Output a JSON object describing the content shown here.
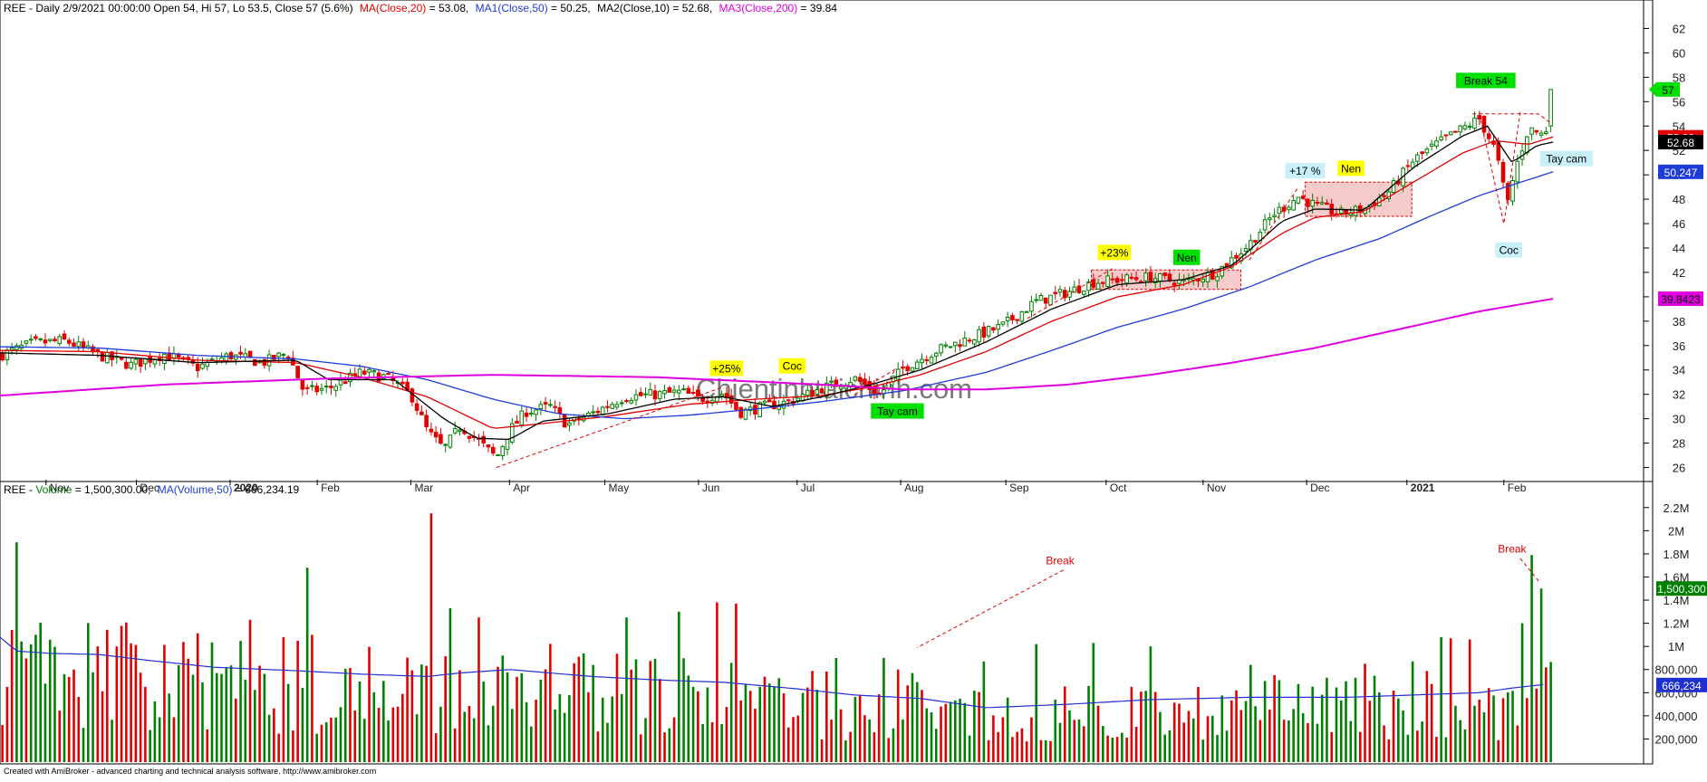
{
  "header": {
    "price_prefix": "REE - Daily 2/9/2021 00:00:00 Open 54, Hi 57, Lo 53.5, Close 57 (5.6%)",
    "ma20_label": "MA(Close,20)",
    "ma20_value": " = 53.08,",
    "ma50_label": "MA1(Close,50)",
    "ma50_value": " = 50.25,",
    "ma10_label": "MA2(Close,10)",
    "ma10_value": " = 52.68,",
    "ma200_label": "MA3(Close,200)",
    "ma200_value": " = 39.84",
    "volume_prefix": "REE - ",
    "volume_label": "Volume",
    "volume_value": " = 1,500,300.00,",
    "volume_ma_label": "MA(Volume,50)",
    "volume_ma_value": " = 666,234.19"
  },
  "watermark": "Chientinhtaichinh.com",
  "footer": "Created with AmiBroker - advanced charting and technical analysis software. http://www.amibroker.com",
  "colors": {
    "up": "#008000",
    "down": "#e00000",
    "ma20": "#e00000",
    "ma10": "#000000",
    "ma50": "#1e3cd8",
    "ma200": "#e000e0",
    "volume_ma": "#2030d0",
    "annotation_yellow": "#ffff00",
    "annotation_green": "#00e000",
    "annotation_cyan": "#c8f0f8",
    "zone_fill": "#f0a0a0",
    "zone_stroke": "#e00000"
  },
  "chart_data": [
    {
      "type": "candlestick",
      "ylim": [
        25,
        63
      ],
      "y_ticks": [
        26,
        28,
        30,
        32,
        34,
        36,
        38,
        40,
        42,
        44,
        46,
        48,
        50,
        52,
        54,
        56,
        58,
        60,
        62
      ],
      "x_month_labels": [
        "Nov",
        "Dec",
        "2020",
        "Feb",
        "Mar",
        "Apr",
        "May",
        "Jun",
        "Jul",
        "Aug",
        "Sep",
        "Oct",
        "Nov",
        "Dec",
        "2021",
        "Feb"
      ],
      "x_month_positions": [
        0.028,
        0.083,
        0.14,
        0.193,
        0.25,
        0.31,
        0.368,
        0.425,
        0.485,
        0.548,
        0.612,
        0.673,
        0.732,
        0.795,
        0.856,
        0.915
      ],
      "price_anchors": [
        [
          0.0,
          35.2
        ],
        [
          0.02,
          36.2
        ],
        [
          0.04,
          36.4
        ],
        [
          0.06,
          35.2
        ],
        [
          0.08,
          34.4
        ],
        [
          0.1,
          35.3
        ],
        [
          0.12,
          34.2
        ],
        [
          0.14,
          35.2
        ],
        [
          0.16,
          34.6
        ],
        [
          0.175,
          35.4
        ],
        [
          0.185,
          32.2
        ],
        [
          0.2,
          32.5
        ],
        [
          0.22,
          33.8
        ],
        [
          0.235,
          33.4
        ],
        [
          0.25,
          32.0
        ],
        [
          0.26,
          29.0
        ],
        [
          0.27,
          27.5
        ],
        [
          0.28,
          29.4
        ],
        [
          0.29,
          28.3
        ],
        [
          0.302,
          26.8
        ],
        [
          0.31,
          29.0
        ],
        [
          0.32,
          30.6
        ],
        [
          0.335,
          31.0
        ],
        [
          0.345,
          29.5
        ],
        [
          0.36,
          30.4
        ],
        [
          0.38,
          31.8
        ],
        [
          0.4,
          32.0
        ],
        [
          0.415,
          32.2
        ],
        [
          0.425,
          31.6
        ],
        [
          0.44,
          32.1
        ],
        [
          0.45,
          30.5
        ],
        [
          0.465,
          31.0
        ],
        [
          0.48,
          31.4
        ],
        [
          0.5,
          32.5
        ],
        [
          0.52,
          33.3
        ],
        [
          0.535,
          32.0
        ],
        [
          0.55,
          34.2
        ],
        [
          0.57,
          35.6
        ],
        [
          0.59,
          36.6
        ],
        [
          0.61,
          37.6
        ],
        [
          0.63,
          39.6
        ],
        [
          0.65,
          40.4
        ],
        [
          0.665,
          41.2
        ],
        [
          0.68,
          41.4
        ],
        [
          0.7,
          41.6
        ],
        [
          0.72,
          41.2
        ],
        [
          0.74,
          42.0
        ],
        [
          0.76,
          44.3
        ],
        [
          0.775,
          46.8
        ],
        [
          0.79,
          48.2
        ],
        [
          0.8,
          47.5
        ],
        [
          0.815,
          46.8
        ],
        [
          0.83,
          47.2
        ],
        [
          0.845,
          48.6
        ],
        [
          0.86,
          51.2
        ],
        [
          0.875,
          52.6
        ],
        [
          0.89,
          53.8
        ],
        [
          0.9,
          54.6
        ],
        [
          0.91,
          52.0
        ],
        [
          0.917,
          47.5
        ],
        [
          0.922,
          50.5
        ],
        [
          0.93,
          53.8
        ],
        [
          0.94,
          53.2
        ],
        [
          0.945,
          57.0
        ]
      ],
      "ohlc_last": {
        "date": "2/9/2021",
        "open": 54,
        "high": 57,
        "low": 53.5,
        "close": 57,
        "change_pct": 5.6
      },
      "series": [
        {
          "name": "MA(Close,20)",
          "last": 53.08,
          "anchors": [
            [
              0.0,
              35.6
            ],
            [
              0.06,
              35.5
            ],
            [
              0.12,
              34.8
            ],
            [
              0.18,
              34.6
            ],
            [
              0.22,
              33.4
            ],
            [
              0.26,
              31.8
            ],
            [
              0.3,
              29.2
            ],
            [
              0.33,
              29.6
            ],
            [
              0.37,
              30.2
            ],
            [
              0.42,
              31.2
            ],
            [
              0.46,
              31.6
            ],
            [
              0.5,
              31.9
            ],
            [
              0.53,
              32.6
            ],
            [
              0.56,
              33.6
            ],
            [
              0.6,
              35.5
            ],
            [
              0.64,
              38.0
            ],
            [
              0.68,
              40.0
            ],
            [
              0.72,
              41.0
            ],
            [
              0.75,
              42.5
            ],
            [
              0.78,
              45.2
            ],
            [
              0.8,
              46.5
            ],
            [
              0.83,
              47.0
            ],
            [
              0.86,
              49.4
            ],
            [
              0.89,
              51.8
            ],
            [
              0.91,
              52.8
            ],
            [
              0.93,
              52.5
            ],
            [
              0.945,
              53.1
            ]
          ]
        },
        {
          "name": "MA1(Close,50)",
          "last": 50.25,
          "anchors": [
            [
              0.0,
              35.9
            ],
            [
              0.06,
              35.8
            ],
            [
              0.12,
              35.2
            ],
            [
              0.18,
              34.9
            ],
            [
              0.22,
              34.3
            ],
            [
              0.26,
              33.2
            ],
            [
              0.3,
              31.6
            ],
            [
              0.34,
              30.4
            ],
            [
              0.38,
              30.0
            ],
            [
              0.42,
              30.3
            ],
            [
              0.46,
              30.8
            ],
            [
              0.5,
              31.4
            ],
            [
              0.55,
              32.3
            ],
            [
              0.6,
              33.8
            ],
            [
              0.64,
              35.6
            ],
            [
              0.68,
              37.5
            ],
            [
              0.72,
              39.0
            ],
            [
              0.76,
              40.8
            ],
            [
              0.8,
              43.0
            ],
            [
              0.84,
              44.8
            ],
            [
              0.87,
              46.6
            ],
            [
              0.9,
              48.3
            ],
            [
              0.93,
              49.6
            ],
            [
              0.945,
              50.25
            ]
          ]
        },
        {
          "name": "MA2(Close,10)",
          "last": 52.68,
          "anchors": [
            [
              0.0,
              35.4
            ],
            [
              0.06,
              35.2
            ],
            [
              0.12,
              34.6
            ],
            [
              0.18,
              34.8
            ],
            [
              0.2,
              33.2
            ],
            [
              0.24,
              33.2
            ],
            [
              0.27,
              30.0
            ],
            [
              0.29,
              28.4
            ],
            [
              0.31,
              28.3
            ],
            [
              0.33,
              29.8
            ],
            [
              0.37,
              30.4
            ],
            [
              0.41,
              31.6
            ],
            [
              0.44,
              31.8
            ],
            [
              0.47,
              31.0
            ],
            [
              0.5,
              31.8
            ],
            [
              0.53,
              32.8
            ],
            [
              0.56,
              34.0
            ],
            [
              0.6,
              36.3
            ],
            [
              0.64,
              39.0
            ],
            [
              0.68,
              41.0
            ],
            [
              0.72,
              41.4
            ],
            [
              0.75,
              42.6
            ],
            [
              0.78,
              46.2
            ],
            [
              0.8,
              47.2
            ],
            [
              0.83,
              47.1
            ],
            [
              0.86,
              50.6
            ],
            [
              0.89,
              53.2
            ],
            [
              0.905,
              54.0
            ],
            [
              0.92,
              51.0
            ],
            [
              0.935,
              52.4
            ],
            [
              0.945,
              52.68
            ]
          ]
        },
        {
          "name": "MA3(Close,200)",
          "last": 39.84,
          "anchors": [
            [
              0.0,
              31.9
            ],
            [
              0.1,
              32.8
            ],
            [
              0.2,
              33.3
            ],
            [
              0.3,
              33.6
            ],
            [
              0.4,
              33.4
            ],
            [
              0.5,
              32.8
            ],
            [
              0.55,
              32.4
            ],
            [
              0.6,
              32.4
            ],
            [
              0.65,
              32.8
            ],
            [
              0.7,
              33.6
            ],
            [
              0.75,
              34.6
            ],
            [
              0.8,
              35.8
            ],
            [
              0.85,
              37.3
            ],
            [
              0.9,
              38.8
            ],
            [
              0.945,
              39.84
            ]
          ]
        }
      ],
      "right_axis_badges": [
        {
          "label": "57",
          "value": 57,
          "color": "#00e000"
        },
        {
          "label": "53.08",
          "value": 53.08,
          "color": "#e00000"
        },
        {
          "label": "52.68",
          "value": 52.68,
          "color": "#000000"
        },
        {
          "label": "50.247",
          "value": 50.247,
          "color": "#1e3cd8"
        },
        {
          "label": "39.8423",
          "value": 39.8423,
          "color": "#e000e0"
        }
      ],
      "annotations": [
        {
          "text": "+25%",
          "x": 0.442,
          "y": 34.1,
          "bg": "#ffff00"
        },
        {
          "text": "Coc",
          "x": 0.482,
          "y": 34.3,
          "bg": "#ffff00"
        },
        {
          "text": "Tay cam",
          "x": 0.546,
          "y": 30.6,
          "bg": "#00e000"
        },
        {
          "text": "+23%",
          "x": 0.678,
          "y": 43.6,
          "bg": "#ffff00"
        },
        {
          "text": "Nen",
          "x": 0.722,
          "y": 43.2,
          "bg": "#00e000"
        },
        {
          "text": "+17 %",
          "x": 0.794,
          "y": 50.3,
          "bg": "#c8f0f8"
        },
        {
          "text": "Nen",
          "x": 0.822,
          "y": 50.5,
          "bg": "#ffff00"
        },
        {
          "text": "Break 54",
          "x": 0.904,
          "y": 57.7,
          "bg": "#00e000"
        },
        {
          "text": "Tay cam",
          "x": 0.953,
          "y": 51.3,
          "bg": "#c8f0f8"
        },
        {
          "text": "Coc",
          "x": 0.918,
          "y": 43.8,
          "bg": "#c8f0f8"
        }
      ],
      "zones": [
        {
          "x0": 0.664,
          "x1": 0.755,
          "y0": 40.6,
          "y1": 42.2
        },
        {
          "x0": 0.794,
          "x1": 0.859,
          "y0": 46.6,
          "y1": 49.4
        }
      ]
    },
    {
      "type": "bar",
      "ylim": [
        0,
        2300000
      ],
      "y_ticks": [
        200000,
        400000,
        600000,
        800000,
        1000000,
        1200000,
        1400000,
        1600000,
        1800000,
        2000000,
        2200000
      ],
      "y_tick_labels": [
        "200,000",
        "400,000",
        "600,000",
        "800,000",
        "1M",
        "1.2M",
        "1.4M",
        "1.6M",
        "1.8M",
        "2M",
        "2.2M"
      ],
      "last_volume": 1500300,
      "volume_ma_last": 666234.19,
      "spikes": [
        [
          0.011,
          1900000,
          "up"
        ],
        [
          0.023,
          1100000,
          "up"
        ],
        [
          0.045,
          800000,
          "down"
        ],
        [
          0.058,
          1000000,
          "down"
        ],
        [
          0.07,
          1000000,
          "down"
        ],
        [
          0.138,
          820000,
          "up"
        ],
        [
          0.153,
          1230000,
          "down"
        ],
        [
          0.172,
          1080000,
          "down"
        ],
        [
          0.187,
          1680000,
          "up"
        ],
        [
          0.19,
          1100000,
          "down"
        ],
        [
          0.262,
          2150000,
          "down"
        ],
        [
          0.275,
          1330000,
          "up"
        ],
        [
          0.29,
          1250000,
          "down"
        ],
        [
          0.38,
          1250000,
          "up"
        ],
        [
          0.412,
          1300000,
          "up"
        ],
        [
          0.437,
          1380000,
          "down"
        ],
        [
          0.447,
          1370000,
          "down"
        ],
        [
          0.51,
          900000,
          "up"
        ],
        [
          0.538,
          900000,
          "up"
        ],
        [
          0.547,
          800000,
          "down"
        ],
        [
          0.555,
          770000,
          "up"
        ],
        [
          0.6,
          870000,
          "up"
        ],
        [
          0.63,
          1020000,
          "up"
        ],
        [
          0.665,
          1030000,
          "up"
        ],
        [
          0.7,
          1000000,
          "up"
        ],
        [
          0.76,
          840000,
          "up"
        ],
        [
          0.83,
          850000,
          "down"
        ],
        [
          0.86,
          870000,
          "up"
        ],
        [
          0.878,
          1080000,
          "up"
        ],
        [
          0.884,
          1070000,
          "down"
        ],
        [
          0.895,
          1060000,
          "down"
        ],
        [
          0.927,
          1200000,
          "up"
        ],
        [
          0.933,
          1790000,
          "up"
        ],
        [
          0.939,
          1500300,
          "up"
        ]
      ],
      "ma_anchors": [
        [
          0.0,
          1080000
        ],
        [
          0.01,
          960000
        ],
        [
          0.03,
          940000
        ],
        [
          0.06,
          930000
        ],
        [
          0.09,
          880000
        ],
        [
          0.13,
          820000
        ],
        [
          0.18,
          790000
        ],
        [
          0.22,
          760000
        ],
        [
          0.26,
          740000
        ],
        [
          0.28,
          770000
        ],
        [
          0.31,
          800000
        ],
        [
          0.36,
          740000
        ],
        [
          0.4,
          710000
        ],
        [
          0.44,
          690000
        ],
        [
          0.48,
          640000
        ],
        [
          0.52,
          580000
        ],
        [
          0.56,
          550000
        ],
        [
          0.6,
          470000
        ],
        [
          0.65,
          500000
        ],
        [
          0.7,
          540000
        ],
        [
          0.76,
          560000
        ],
        [
          0.82,
          560000
        ],
        [
          0.86,
          580000
        ],
        [
          0.9,
          600000
        ],
        [
          0.92,
          640000
        ],
        [
          0.939,
          670000
        ]
      ],
      "annotations": [
        {
          "text": "Break",
          "x": 0.645,
          "y": 1710000
        },
        {
          "text": "Break",
          "x": 0.92,
          "y": 1810000
        }
      ]
    }
  ]
}
